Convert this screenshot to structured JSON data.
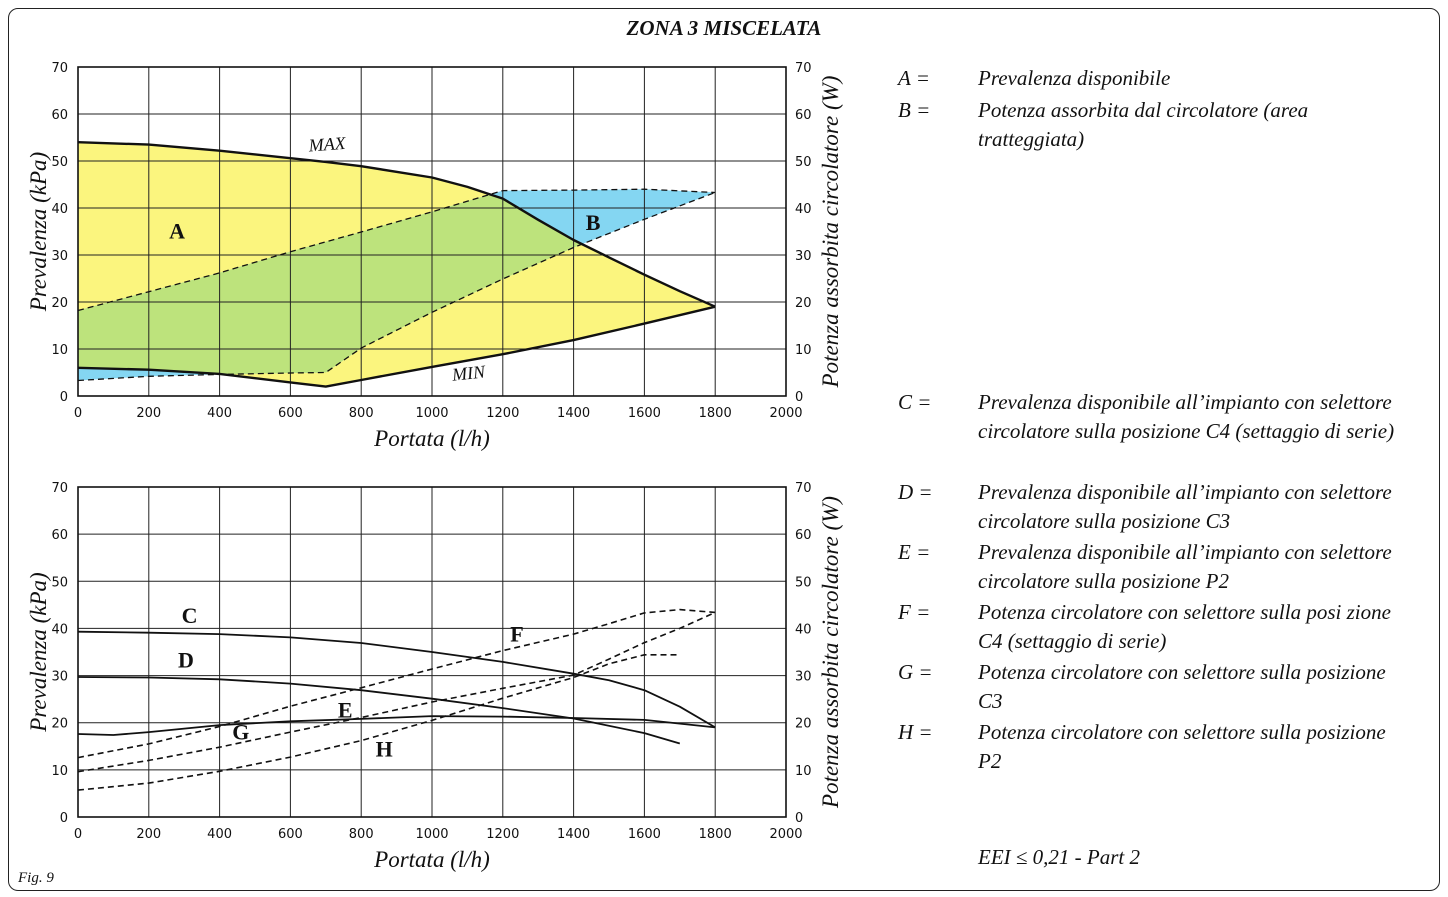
{
  "title": "ZONA 3 MISCELATA",
  "figure_label": "Fig. 9",
  "eei_note": "EEI ≤ 0,21 - Part 2",
  "legend_top": [
    {
      "key": "A =",
      "text": "Prevalenza disponibile"
    },
    {
      "key": "B =",
      "text": "Potenza assorbita dal circolatore (area tratteggiata)"
    }
  ],
  "legend_bottom": [
    {
      "key": "C =",
      "text": "Prevalenza disponibile all’impianto con selettore circolatore sulla posizione C4 (settaggio di serie)"
    },
    {
      "key": "D =",
      "text": "Prevalenza disponibile all’impianto con selettore circolatore sulla posizione C3"
    },
    {
      "key": "E =",
      "text": "Prevalenza disponibile all’impianto con selettore circolatore sulla posizione P2"
    },
    {
      "key": "F =",
      "text": "Potenza circolatore con selettore sulla posi zione C4 (settaggio di serie)"
    },
    {
      "key": "G =",
      "text": "Potenza circolatore con selettore sulla posizione C3"
    },
    {
      "key": "H =",
      "text": "Potenza circolatore con selettore sulla posizione P2"
    }
  ],
  "chart_data": [
    {
      "type": "area",
      "xlabel": "Portata (l/h)",
      "ylabel": "Prevalenza (kPa)",
      "y2label": "Potenza assorbita circolatore (W)",
      "xlim": [
        0,
        2000
      ],
      "ylim": [
        0,
        70
      ],
      "y2lim": [
        0,
        70
      ],
      "xticks": [
        0,
        200,
        400,
        600,
        800,
        1000,
        1200,
        1400,
        1600,
        1800,
        2000
      ],
      "yticks": [
        0,
        10,
        20,
        30,
        40,
        50,
        60,
        70
      ],
      "grid": true,
      "colors": {
        "head_area": "#fbf57e",
        "power_area": "#84d6f2",
        "overlap": "#bde37c"
      },
      "series": [
        {
          "name": "MAX",
          "style": "solid",
          "axis": "left",
          "x": [
            0,
            200,
            400,
            600,
            700,
            800,
            1000,
            1100,
            1200,
            1300,
            1400,
            1500,
            1600,
            1700,
            1800
          ],
          "y": [
            54,
            53.5,
            52.2,
            50.6,
            49.8,
            48.9,
            46.5,
            44.5,
            42,
            37.5,
            33.2,
            29.5,
            25.8,
            22.3,
            19
          ]
        },
        {
          "name": "MIN",
          "style": "solid",
          "axis": "left",
          "x": [
            0,
            200,
            400,
            600,
            700,
            800,
            1000,
            1200,
            1400,
            1600,
            1800
          ],
          "y": [
            6,
            5.6,
            4.7,
            2.9,
            2,
            3.4,
            6.2,
            8.9,
            11.9,
            15.4,
            19
          ]
        },
        {
          "name": "",
          "style": "dashed",
          "axis": "right",
          "x": [
            0,
            200,
            400,
            600,
            800,
            1000,
            1200,
            1400,
            1600,
            1800
          ],
          "y": [
            18.2,
            22.2,
            26.2,
            30.7,
            34.9,
            39.2,
            43.7,
            43.8,
            44,
            43.3
          ]
        },
        {
          "name": "",
          "style": "dashed",
          "axis": "right",
          "x": [
            0,
            200,
            400,
            600,
            700,
            800,
            1000,
            1200,
            1400,
            1600,
            1800
          ],
          "y": [
            3.3,
            4.2,
            4.6,
            4.9,
            5,
            10.2,
            17.8,
            24.9,
            31.6,
            37.6,
            43.3
          ]
        }
      ],
      "annotations": [
        "A",
        "B",
        "MAX",
        "MIN"
      ]
    },
    {
      "type": "line",
      "xlabel": "Portata (l/h)",
      "ylabel": "Prevalenza (kPa)",
      "y2label": "Potenza assorbita circolatore (W)",
      "xlim": [
        0,
        2000
      ],
      "ylim": [
        0,
        70
      ],
      "y2lim": [
        0,
        70
      ],
      "xticks": [
        0,
        200,
        400,
        600,
        800,
        1000,
        1200,
        1400,
        1600,
        1800,
        2000
      ],
      "yticks": [
        0,
        10,
        20,
        30,
        40,
        50,
        60,
        70
      ],
      "grid": true,
      "series": [
        {
          "name": "C",
          "style": "solid",
          "axis": "left",
          "x": [
            0,
            200,
            400,
            600,
            800,
            1000,
            1200,
            1400,
            1500,
            1600,
            1700,
            1800
          ],
          "y": [
            39.3,
            39.1,
            38.8,
            38.1,
            36.9,
            35,
            32.9,
            30.4,
            29,
            26.9,
            23.4,
            19
          ]
        },
        {
          "name": "D",
          "style": "solid",
          "axis": "left",
          "x": [
            0,
            200,
            400,
            600,
            800,
            1000,
            1200,
            1400,
            1600,
            1700
          ],
          "y": [
            29.7,
            29.6,
            29.2,
            28.3,
            26.9,
            25.1,
            23.1,
            20.9,
            17.8,
            15.6
          ]
        },
        {
          "name": "E",
          "style": "solid",
          "axis": "left",
          "x": [
            0,
            100,
            200,
            400,
            600,
            800,
            1000,
            1200,
            1400,
            1600,
            1800
          ],
          "y": [
            17.6,
            17.4,
            18,
            19.5,
            20.3,
            20.8,
            21.4,
            21.3,
            21,
            20.6,
            19
          ]
        },
        {
          "name": "F",
          "style": "dashed",
          "axis": "right",
          "x": [
            0,
            200,
            400,
            600,
            800,
            1000,
            1200,
            1400,
            1500,
            1600,
            1700,
            1800
          ],
          "y": [
            12.6,
            15.5,
            19.2,
            23.5,
            27.4,
            31.4,
            35.3,
            38.8,
            41,
            43.3,
            44,
            43.4
          ]
        },
        {
          "name": "G",
          "style": "dashed",
          "axis": "right",
          "x": [
            0,
            200,
            400,
            600,
            800,
            1000,
            1200,
            1400,
            1500,
            1600,
            1700,
            1800
          ],
          "y": [
            9.6,
            12,
            14.8,
            18,
            21.1,
            24.4,
            27.3,
            30.1,
            33.5,
            37,
            40,
            43.4
          ]
        },
        {
          "name": "H",
          "style": "dashed",
          "axis": "right",
          "x": [
            0,
            200,
            400,
            600,
            800,
            1000,
            1200,
            1400,
            1500,
            1600,
            1700
          ],
          "y": [
            5.7,
            7.2,
            9.7,
            12.7,
            16.2,
            20.5,
            25.2,
            29.6,
            32.5,
            34.4,
            34.4
          ]
        }
      ],
      "annotations": [
        "C",
        "D",
        "E",
        "F",
        "G",
        "H"
      ]
    }
  ]
}
